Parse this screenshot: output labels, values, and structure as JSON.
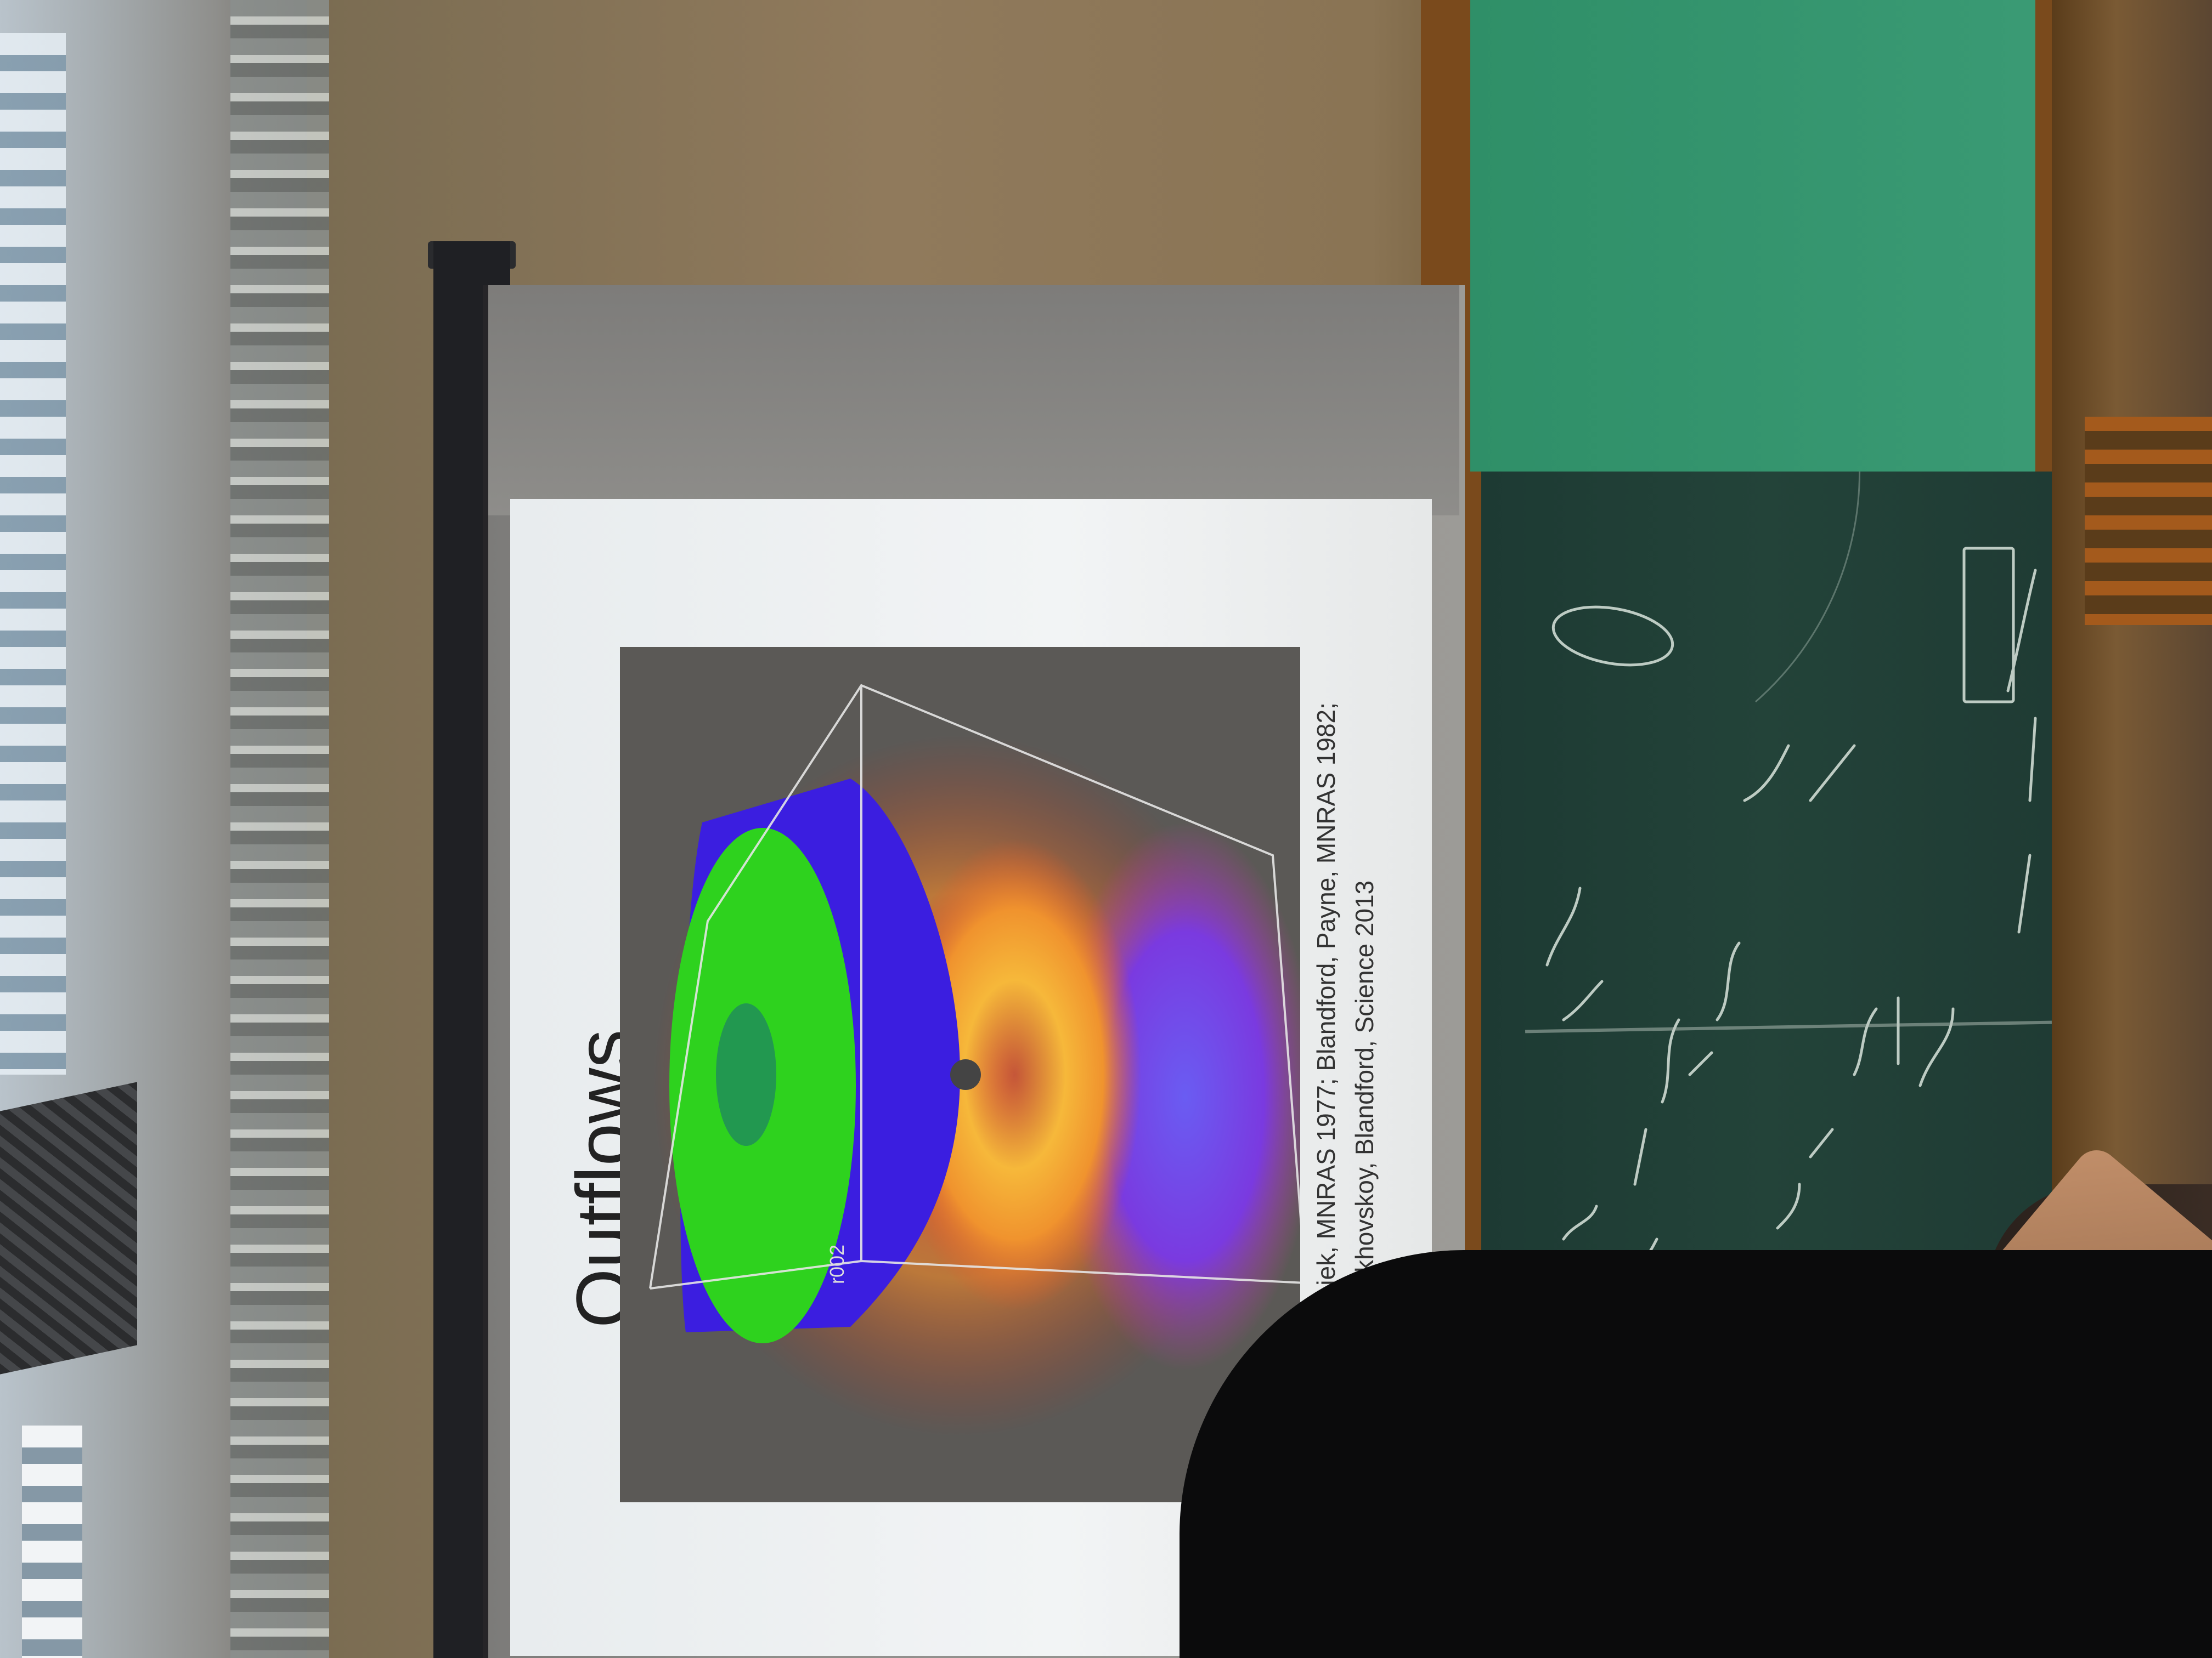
{
  "slide": {
    "title": "Outflows",
    "references": [
      "ndford, Znajek, MNRAS 1977; Blandford, Payne, MNRAS 1982;",
      "Kinney, Tchekhovskoy, Blandford, Science 2013"
    ],
    "viz_axis_label": "r002"
  },
  "blackboard": {
    "chalk_lines": [
      "(1 + 2a/r ...)",
      "= (r-a)^-2 = 1/r^2 (1 - a/r)^-2",
      "1/r = M/L^2 (1 + e cos(f(φ)))",
      "V_eff = -GM/r + L^2/r^2 - k/r^3",
      "2π → 2π + δφ",
      "r = 2E/L - V_eff",
      "sun"
    ]
  },
  "colors": {
    "board_green": "#3a9a74",
    "board_dark": "#1f3b34",
    "jet_blue": "#3b1ee0",
    "jet_green": "#2ed21e",
    "disk_orange": "#f2a234"
  }
}
